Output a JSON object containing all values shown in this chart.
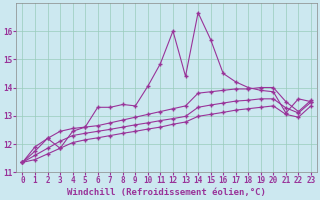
{
  "background_color": "#cce8f0",
  "grid_color": "#99ccbb",
  "line_color": "#993399",
  "xlabel": "Windchill (Refroidissement éolien,°C)",
  "xlim": [
    -0.5,
    23.5
  ],
  "ylim": [
    11,
    17
  ],
  "yticks": [
    11,
    12,
    13,
    14,
    15,
    16
  ],
  "xticks": [
    0,
    1,
    2,
    3,
    4,
    5,
    6,
    7,
    8,
    9,
    10,
    11,
    12,
    13,
    14,
    15,
    16,
    17,
    18,
    19,
    20,
    21,
    22,
    23
  ],
  "line1_x": [
    0,
    1,
    2,
    3,
    4,
    5,
    6,
    7,
    8,
    9,
    10,
    11,
    12,
    13,
    14,
    15,
    16,
    17,
    18,
    19,
    20,
    21,
    22,
    23
  ],
  "line1_y": [
    11.35,
    11.9,
    12.2,
    11.85,
    12.45,
    12.6,
    13.3,
    13.3,
    13.4,
    13.35,
    14.05,
    14.85,
    16.0,
    14.4,
    16.65,
    15.7,
    14.5,
    14.2,
    14.0,
    13.9,
    13.85,
    13.1,
    13.6,
    13.5
  ],
  "line2_x": [
    0,
    1,
    2,
    3,
    4,
    5,
    6,
    7,
    8,
    9,
    10,
    11,
    12,
    13,
    14,
    15,
    16,
    17,
    18,
    19,
    20,
    21,
    22,
    23
  ],
  "line2_y": [
    11.35,
    11.75,
    12.2,
    12.45,
    12.55,
    12.6,
    12.65,
    12.75,
    12.85,
    12.95,
    13.05,
    13.15,
    13.25,
    13.35,
    13.8,
    13.85,
    13.9,
    13.95,
    13.95,
    14.0,
    14.0,
    13.5,
    13.15,
    13.55
  ],
  "line3_x": [
    0,
    1,
    2,
    3,
    4,
    5,
    6,
    7,
    8,
    9,
    10,
    11,
    12,
    13,
    14,
    15,
    16,
    17,
    18,
    19,
    20,
    21,
    22,
    23
  ],
  "line3_y": [
    11.35,
    11.6,
    11.85,
    12.1,
    12.3,
    12.38,
    12.45,
    12.52,
    12.6,
    12.68,
    12.75,
    12.83,
    12.9,
    12.98,
    13.3,
    13.38,
    13.45,
    13.52,
    13.55,
    13.6,
    13.6,
    13.28,
    13.1,
    13.48
  ],
  "line4_x": [
    0,
    1,
    2,
    3,
    4,
    5,
    6,
    7,
    8,
    9,
    10,
    11,
    12,
    13,
    14,
    15,
    16,
    17,
    18,
    19,
    20,
    21,
    22,
    23
  ],
  "line4_y": [
    11.35,
    11.45,
    11.65,
    11.85,
    12.05,
    12.15,
    12.22,
    12.3,
    12.38,
    12.45,
    12.53,
    12.6,
    12.7,
    12.78,
    12.98,
    13.05,
    13.12,
    13.2,
    13.25,
    13.3,
    13.35,
    13.05,
    12.95,
    13.35
  ],
  "marker": "+",
  "markersize": 3,
  "linewidth": 0.8,
  "xlabel_fontsize": 6.5,
  "tick_fontsize": 5.5
}
